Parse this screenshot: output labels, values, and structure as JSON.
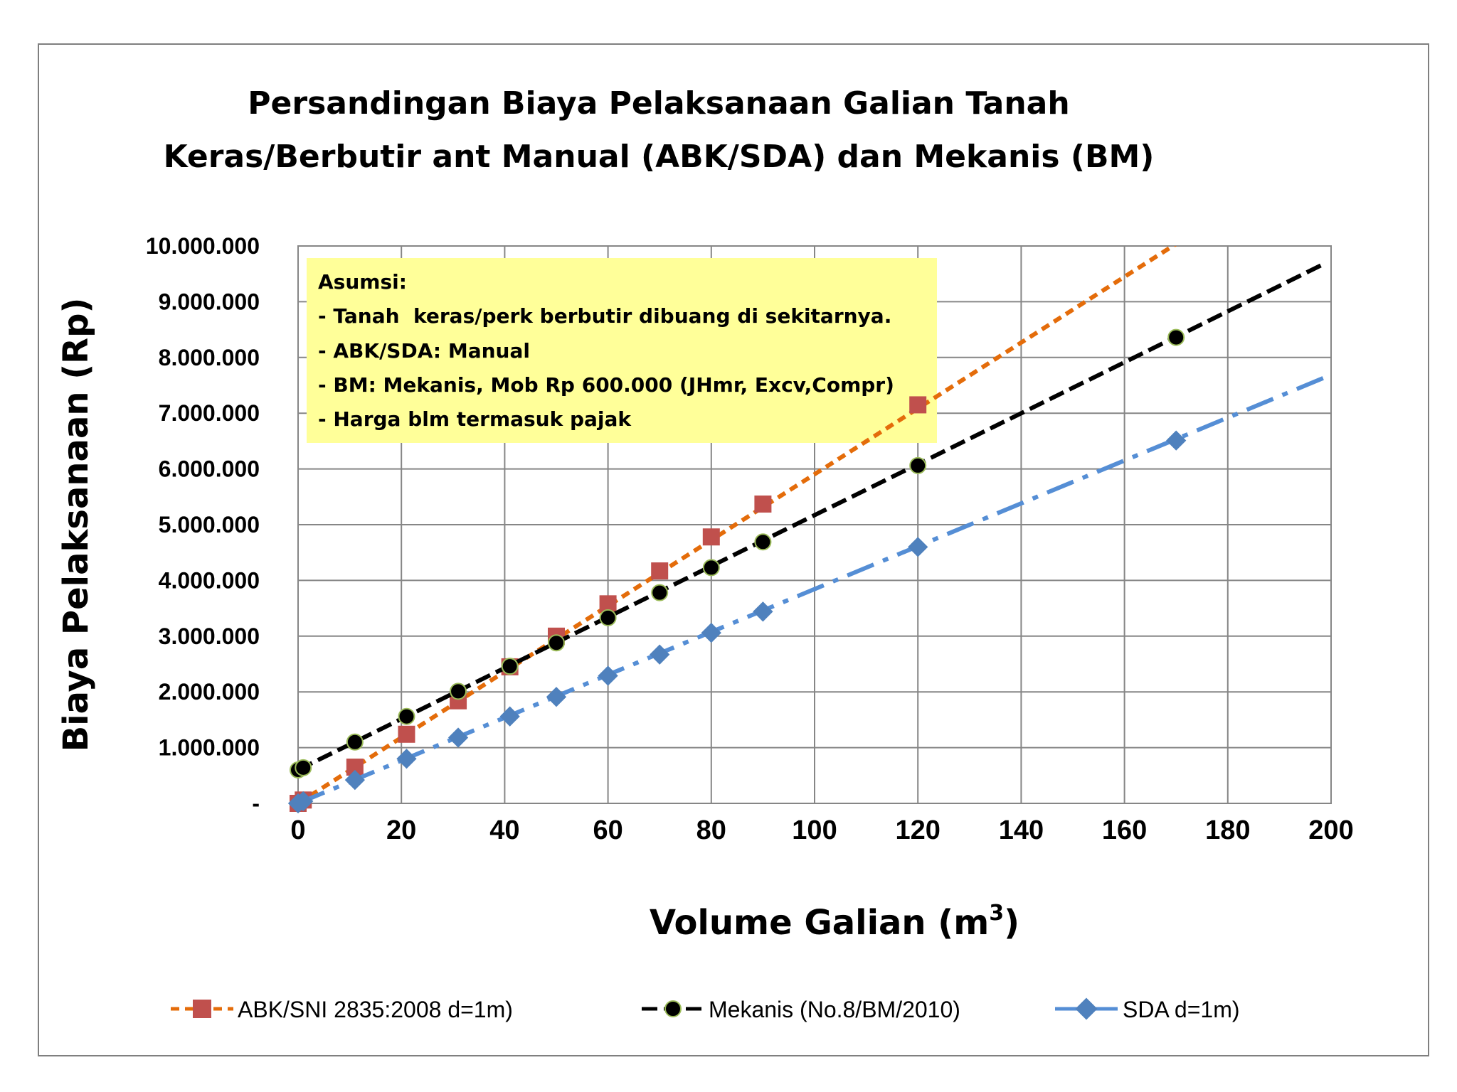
{
  "chart_data": {
    "type": "line",
    "title_lines": [
      "Persandingan Biaya Pelaksanaan Galian Tanah",
      "Keras/Berbutir ant Manual (ABK/SDA) dan Mekanis (BM)"
    ],
    "xlabel_main": "Volume Galian (m",
    "xlabel_sup": "3",
    "xlabel_close": ")",
    "ylabel": "Biaya Pelaksanaan (Rp)",
    "xlim": [
      0,
      200
    ],
    "ylim": [
      0,
      10000000
    ],
    "x_ticks": [
      "0",
      "20",
      "40",
      "60",
      "80",
      "100",
      "120",
      "140",
      "160",
      "180",
      "200"
    ],
    "x_tick_values": [
      0,
      20,
      40,
      60,
      80,
      100,
      120,
      140,
      160,
      180,
      200
    ],
    "y_ticks": [
      "-",
      "1.000.000",
      "2.000.000",
      "3.000.000",
      "4.000.000",
      "5.000.000",
      "6.000.000",
      "7.000.000",
      "8.000.000",
      "9.000.000",
      "10.000.000"
    ],
    "y_tick_values": [
      0,
      1000000,
      2000000,
      3000000,
      4000000,
      5000000,
      6000000,
      7000000,
      8000000,
      9000000,
      10000000
    ],
    "grid": true,
    "legend_position": "bottom",
    "series": [
      {
        "name": "ABK/SNI 2835:2008 d=1m)",
        "marker": "square",
        "marker_color": "#c0504d",
        "line_color": "#e46c0a",
        "dash": "short-dash",
        "points": [
          [
            0,
            0
          ],
          [
            1,
            60000
          ],
          [
            11,
            650000
          ],
          [
            21,
            1240000
          ],
          [
            31,
            1840000
          ],
          [
            41,
            2450000
          ],
          [
            50,
            3000000
          ],
          [
            60,
            3580000
          ],
          [
            70,
            4170000
          ],
          [
            80,
            4780000
          ],
          [
            90,
            5370000
          ],
          [
            120,
            7150000
          ]
        ],
        "trend_end": [
          210,
          12400000
        ]
      },
      {
        "name": "Mekanis (No.8/BM/2010)",
        "marker": "circle",
        "marker_color": "#000000",
        "line_color": "#000000",
        "dash": "long-dash",
        "points": [
          [
            0,
            600000
          ],
          [
            1,
            640000
          ],
          [
            11,
            1100000
          ],
          [
            21,
            1560000
          ],
          [
            31,
            2010000
          ],
          [
            41,
            2460000
          ],
          [
            50,
            2880000
          ],
          [
            60,
            3330000
          ],
          [
            70,
            3780000
          ],
          [
            80,
            4230000
          ],
          [
            90,
            4690000
          ],
          [
            120,
            6060000
          ],
          [
            170,
            8360000
          ]
        ],
        "trend_end": [
          198,
          9650000
        ]
      },
      {
        "name": "SDA d=1m)",
        "marker": "diamond",
        "marker_color": "#4f81bd",
        "line_color": "#558ed5",
        "dash": "dash-dot",
        "points": [
          [
            0,
            0
          ],
          [
            1,
            38000
          ],
          [
            11,
            420000
          ],
          [
            21,
            800000
          ],
          [
            31,
            1180000
          ],
          [
            41,
            1560000
          ],
          [
            50,
            1910000
          ],
          [
            60,
            2290000
          ],
          [
            70,
            2670000
          ],
          [
            80,
            3060000
          ],
          [
            90,
            3440000
          ],
          [
            120,
            4600000
          ],
          [
            170,
            6510000
          ]
        ],
        "trend_end": [
          199,
          7650000
        ]
      }
    ],
    "annotation": {
      "fill": "#ffff99",
      "lines": [
        "Asumsi:",
        "- Tanah  keras/perk berbutir dibuang di sekitarnya.",
        "- ABK/SDA: Manual",
        "- BM: Mekanis, Mob Rp 600.000 (JHmr, Excv,Compr)",
        "- Harga blm termasuk pajak"
      ]
    }
  }
}
